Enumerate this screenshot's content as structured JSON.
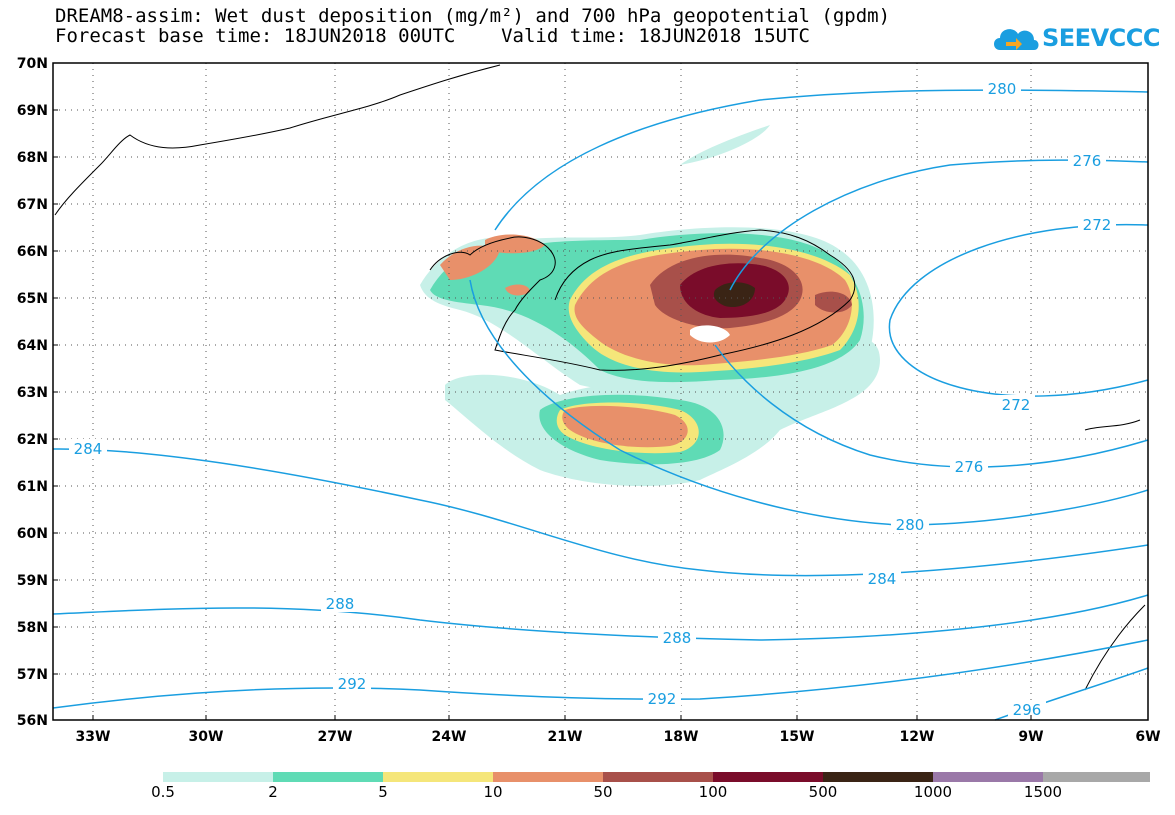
{
  "title_line1": "DREAM8-assim: Wet dust deposition (mg/m²) and 700 hPa geopotential (gpdm)",
  "title_line2": "Forecast base time: 18JUN2018 00UTC    Valid time: 18JUN2018 15UTC",
  "logo_text": "SEEVCCC",
  "map": {
    "lat_labels": [
      "70N",
      "69N",
      "68N",
      "67N",
      "66N",
      "65N",
      "64N",
      "63N",
      "62N",
      "61N",
      "60N",
      "59N",
      "58N",
      "57N",
      "56N"
    ],
    "lon_labels": [
      "33W",
      "30W",
      "27W",
      "24W",
      "21W",
      "18W",
      "15W",
      "12W",
      "9W",
      "6W"
    ],
    "contour_labels": [
      "280",
      "276",
      "272",
      "272",
      "276",
      "280",
      "284",
      "284",
      "288",
      "288",
      "292",
      "292",
      "296"
    ]
  },
  "legend": {
    "labels": [
      "0.5",
      "2",
      "5",
      "10",
      "50",
      "100",
      "500",
      "1000",
      "1500"
    ],
    "colors": [
      "#c7f0e8",
      "#5fdbb5",
      "#f5e67a",
      "#e8906a",
      "#a8504a",
      "#7a0c2a",
      "#3a2415",
      "#9a78a8",
      "#a8a8a8"
    ]
  },
  "colors": {
    "contour": "#1a9ee0",
    "coast": "#000000"
  }
}
